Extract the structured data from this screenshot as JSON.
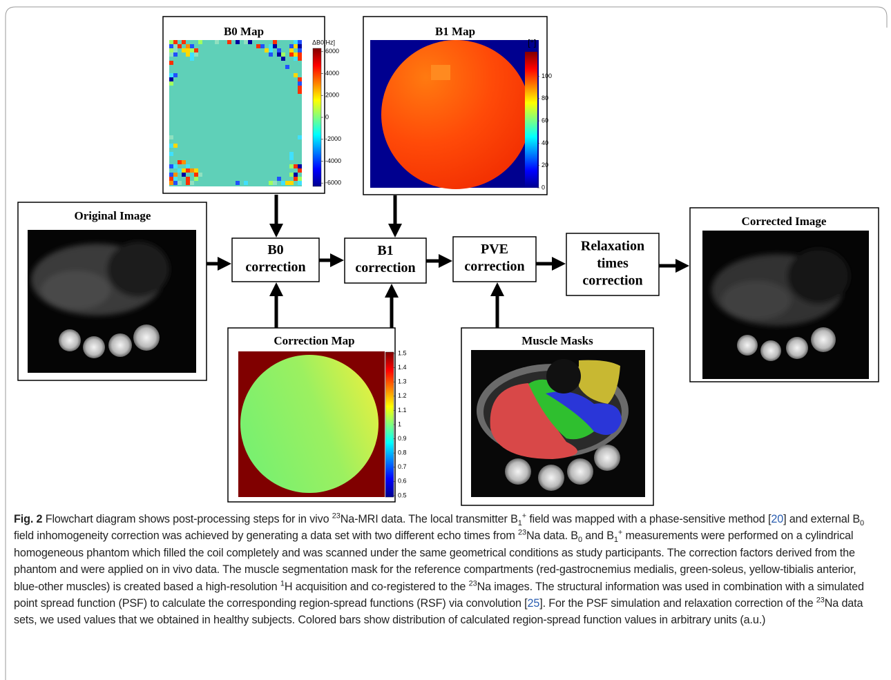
{
  "panels": {
    "b0_map": {
      "title": "B0 Map",
      "colorbar_label": "ΔB0[Hz]",
      "clim": [
        -6300,
        6300
      ],
      "ticks": [
        6000,
        4000,
        2000,
        0,
        -2000,
        -4000,
        -6000
      ]
    },
    "b1_map": {
      "title": "B1 Map",
      "colorbar_label": "[°]",
      "clim": [
        0,
        122
      ],
      "ticks": [
        100,
        80,
        60,
        40,
        20,
        0
      ]
    },
    "original_image": {
      "title": "Original Image"
    },
    "corrected_image": {
      "title": "Corrected Image"
    },
    "correction_map": {
      "title": "Correction Map",
      "clim": [
        0.49,
        1.51
      ],
      "ticks": [
        1.5,
        1.4,
        1.3,
        1.2,
        1.1,
        1,
        0.9,
        0.8,
        0.7,
        0.6,
        0.5
      ]
    },
    "muscle_masks": {
      "title": "Muscle Masks"
    }
  },
  "steps": [
    {
      "lines": [
        "B0",
        "correction"
      ]
    },
    {
      "lines": [
        "B1",
        "correction"
      ]
    },
    {
      "lines": [
        "PVE",
        "correction"
      ]
    },
    {
      "lines": [
        "Relaxation",
        "times",
        "correction"
      ]
    }
  ],
  "caption": {
    "label": "Fig. 2",
    "runs": [
      {
        "text": " Flowchart diagram shows post-processing steps for in vivo "
      },
      {
        "text": "23",
        "kind": "sup"
      },
      {
        "text": "Na-MRI data. The local transmitter B"
      },
      {
        "text": "1",
        "kind": "sub"
      },
      {
        "text": "+",
        "kind": "sup"
      },
      {
        "text": " field was mapped with a phase-sensitive method ["
      },
      {
        "text": "20",
        "kind": "ref"
      },
      {
        "text": "] and external B"
      },
      {
        "text": "0",
        "kind": "sub"
      },
      {
        "text": " field inhomogeneity correction was achieved by generating a data set with two different echo times from "
      },
      {
        "text": "23",
        "kind": "sup"
      },
      {
        "text": "Na data. B"
      },
      {
        "text": "0",
        "kind": "sub"
      },
      {
        "text": " and B"
      },
      {
        "text": "1",
        "kind": "sub"
      },
      {
        "text": "+",
        "kind": "sup"
      },
      {
        "text": " measurements were performed on a cylindrical homogeneous phantom which filled the coil completely and was scanned under the same geometrical conditions as study participants. The correction factors derived from the phantom and were applied on in vivo data. The muscle segmentation mask for the reference compartments (red-gastrocnemius medialis, green-soleus, yellow-tibialis anterior, blue-other muscles) is created based a high-resolution "
      },
      {
        "text": "1",
        "kind": "sup"
      },
      {
        "text": "H acquisition and co-registered to the "
      },
      {
        "text": "23",
        "kind": "sup"
      },
      {
        "text": "Na images. The structural information was used in combination with a simulated point spread function (PSF) to calculate the corresponding region-spread functions (RSF) via convolution ["
      },
      {
        "text": "25",
        "kind": "ref"
      },
      {
        "text": "]. For the PSF simulation and relaxation correction of the "
      },
      {
        "text": "23",
        "kind": "sup"
      },
      {
        "text": "Na data sets, we used values that we obtained in healthy subjects. Colored bars show distribution of calculated region-spread function values in arbitrary units (a.u.)"
      }
    ]
  }
}
